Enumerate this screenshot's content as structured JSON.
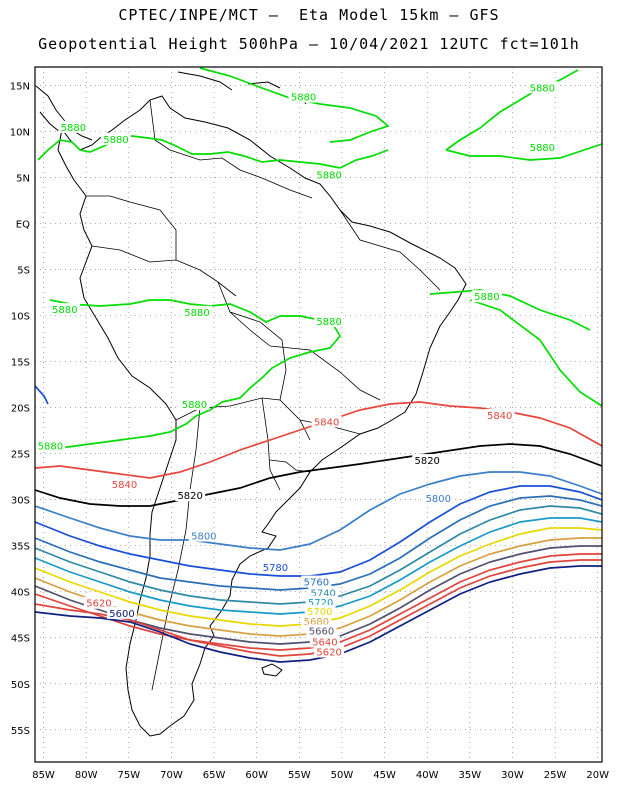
{
  "header": {
    "line1": "CPTEC/INPE/MCT –  Eta Model 15km – GFS",
    "line2": "Geopotential Height 500hPa – 10/04/2021 12UTC fct=101h"
  },
  "axes": {
    "lon_labels": [
      "85W",
      "80W",
      "75W",
      "70W",
      "65W",
      "60W",
      "55W",
      "50W",
      "45W",
      "40W",
      "35W",
      "30W",
      "25W",
      "20W"
    ],
    "lat_labels": [
      "15N",
      "10N",
      "5N",
      "EQ",
      "5S",
      "10S",
      "15S",
      "20S",
      "25S",
      "30S",
      "35S",
      "40S",
      "45S",
      "50S",
      "55S"
    ],
    "lon_range": [
      -86,
      -19.5
    ],
    "lat_range": [
      17,
      -58.5
    ]
  },
  "contour_colors": {
    "5880": "#00dd00",
    "5840": "#e8453c",
    "5820": "#000000",
    "5800": "#3a7fc8",
    "5780": "#1a4fd8",
    "5760": "#2a6fb8",
    "5740": "#2e8aa8",
    "5720": "#1a9ac8",
    "5700": "#e8d800",
    "5680": "#d8a040",
    "5660": "#505070",
    "5640": "#e0443c",
    "5620": "#e0443c",
    "5600": "#102080"
  },
  "contours": [
    {
      "value": "5880",
      "label": "5880",
      "color": "#00dd00",
      "lon": -81.5,
      "lat": 10.5
    },
    {
      "value": "5880",
      "label": "5880",
      "color": "#00dd00",
      "lon": -54.5,
      "lat": 13.8
    },
    {
      "value": "5880",
      "label": "5880",
      "color": "#00dd00",
      "lon": -26.5,
      "lat": 14.8
    },
    {
      "value": "5880",
      "label": "5880",
      "color": "#00dd00",
      "lon": -76.5,
      "lat": 9.2
    },
    {
      "value": "5880",
      "label": "5880",
      "color": "#00dd00",
      "lon": -51.5,
      "lat": 5.3
    },
    {
      "value": "5880",
      "label": "5880",
      "color": "#00dd00",
      "lon": -26.5,
      "lat": 8.3
    },
    {
      "value": "5880",
      "label": "5880",
      "color": "#00dd00",
      "lon": -82.5,
      "lat": -9.3
    },
    {
      "value": "5880",
      "label": "5880",
      "color": "#00dd00",
      "lon": -67,
      "lat": -9.6
    },
    {
      "value": "5880",
      "label": "5880",
      "color": "#00dd00",
      "lon": -51.5,
      "lat": -10.6
    },
    {
      "value": "5880",
      "label": "5880",
      "color": "#00dd00",
      "lon": -33,
      "lat": -7.9
    },
    {
      "value": "5880",
      "label": "5880",
      "color": "#00dd00",
      "lon": -67.3,
      "lat": -19.6
    },
    {
      "value": "5880",
      "label": "5880",
      "color": "#00dd00",
      "lon": -84.2,
      "lat": -24.1
    },
    {
      "value": "5840",
      "label": "5840",
      "color": "#e8453c",
      "lon": -51.8,
      "lat": -21.5
    },
    {
      "value": "5840",
      "label": "5840",
      "color": "#e8453c",
      "lon": -31.5,
      "lat": -20.8
    },
    {
      "value": "5840",
      "label": "5840",
      "color": "#e8453c",
      "lon": -75.5,
      "lat": -28.3
    },
    {
      "value": "5820",
      "label": "5820",
      "color": "#000000",
      "lon": -40,
      "lat": -25.7
    },
    {
      "value": "5820",
      "label": "5820",
      "color": "#000000",
      "lon": -67.8,
      "lat": -29.5
    },
    {
      "value": "5800",
      "label": "5800",
      "color": "#3a7fc8",
      "lon": -38.7,
      "lat": -29.8
    },
    {
      "value": "5800",
      "label": "5800",
      "color": "#3a7fc8",
      "lon": -66.2,
      "lat": -33.9
    },
    {
      "value": "5780",
      "label": "5780",
      "color": "#1a4fd8",
      "lon": -57.8,
      "lat": -37.3
    },
    {
      "value": "5760",
      "label": "5760",
      "color": "#2a6fb8",
      "lon": -53,
      "lat": -38.9
    },
    {
      "value": "5740",
      "label": "5740",
      "color": "#2e8aa8",
      "lon": -52.2,
      "lat": -40.1
    },
    {
      "value": "5720",
      "label": "5720",
      "color": "#1a9ac8",
      "lon": -52.5,
      "lat": -41.1
    },
    {
      "value": "5700",
      "label": "5700",
      "color": "#e8d800",
      "lon": -52.6,
      "lat": -42.1
    },
    {
      "value": "5680",
      "label": "5680",
      "color": "#d8a040",
      "lon": -53,
      "lat": -43.2
    },
    {
      "value": "5660",
      "label": "5660",
      "color": "#505070",
      "lon": -52.4,
      "lat": -44.2
    },
    {
      "value": "5640",
      "label": "5640",
      "color": "#e0443c",
      "lon": -52,
      "lat": -45.4
    },
    {
      "value": "5620",
      "label": "5620",
      "color": "#e0443c",
      "lon": -51.5,
      "lat": -46.5
    },
    {
      "value": "5620",
      "label": "5620",
      "color": "#e0443c",
      "lon": -78.5,
      "lat": -41.2
    },
    {
      "value": "5600",
      "label": "5600",
      "color": "#102080",
      "lon": -75.8,
      "lat": -42.3
    }
  ]
}
